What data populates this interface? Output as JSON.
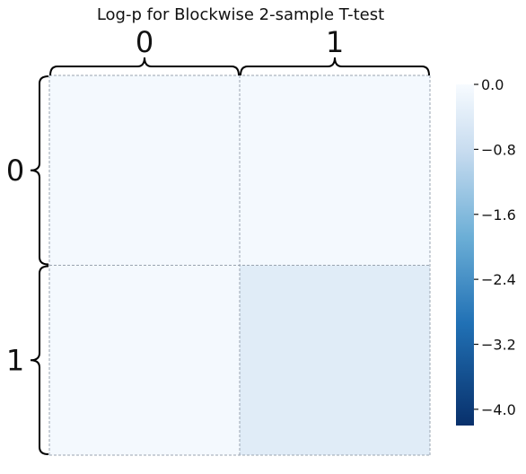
{
  "chart_data": {
    "type": "heatmap",
    "title": "Log-p for Blockwise 2-sample T-test",
    "xlabel": "",
    "ylabel": "",
    "x_categories": [
      "0",
      "1"
    ],
    "y_categories": [
      "0",
      "1"
    ],
    "values": [
      [
        -0.05,
        -0.05
      ],
      [
        -0.05,
        -0.4
      ]
    ],
    "colorbar": {
      "cmap": "Blues_r",
      "vmin": -4.2,
      "vmax": 0.0,
      "ticks": [
        0.0,
        -0.8,
        -1.6,
        -2.4,
        -3.2,
        -4.0
      ],
      "tick_labels": [
        "0.0",
        "−0.8",
        "−1.6",
        "−2.4",
        "−3.2",
        "−4.0"
      ],
      "colors": {
        "dark": "#08306b",
        "mid_dark": "#2171b5",
        "mid": "#6baed6",
        "light": "#c6dbef",
        "lightest": "#f7fbff"
      }
    },
    "grid": true,
    "grid_color": "#9aa4b0",
    "brace_color": "#000000",
    "legend": "right"
  }
}
